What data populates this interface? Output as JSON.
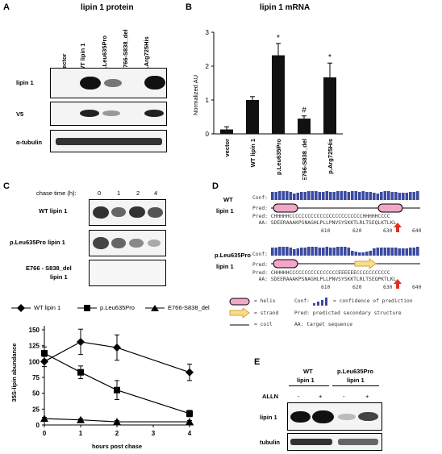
{
  "panelA": {
    "letter": "A",
    "title": "lipin 1 protein",
    "lanes": [
      "vector",
      "WT lipin 1",
      "p.Leu635Pro",
      "E766-S838_del",
      "p.Arg725His"
    ],
    "rows": [
      "lipin 1",
      "V5",
      "α-tubulin"
    ]
  },
  "panelB": {
    "letter": "B",
    "title": "lipin 1 mRNA",
    "chart_data": {
      "type": "bar",
      "categories": [
        "vector",
        "WT lipin 1",
        "p.Leu635Pro",
        "E766-S838_del",
        "p.Arg725His"
      ],
      "values": [
        0.13,
        1.0,
        2.32,
        0.45,
        1.67
      ],
      "errors": [
        0.08,
        0.1,
        0.35,
        0.08,
        0.42
      ],
      "markers": [
        "",
        "",
        "*",
        "#",
        "*"
      ],
      "ylabel": "Normalized AU",
      "ylim": [
        0,
        3
      ],
      "yticks": [
        "0",
        "1",
        "2",
        "3"
      ]
    }
  },
  "panelC": {
    "letter": "C",
    "chase_label": "chase time (h):",
    "chase_times": [
      "0",
      "1",
      "2",
      "4"
    ],
    "rows": [
      "WT lipin 1",
      "p.Leu635Pro lipin 1",
      "E766 - S838_del",
      "lipin 1"
    ],
    "chart_data": {
      "type": "line",
      "x": [
        0,
        1,
        2,
        4
      ],
      "series": [
        {
          "name": "WT lipin 1",
          "values": [
            100,
            131,
            122,
            83
          ],
          "errors": [
            8,
            20,
            20,
            13
          ]
        },
        {
          "name": "p.Leu635Pro",
          "values": [
            113,
            83,
            55,
            18
          ],
          "errors": [
            10,
            10,
            15,
            5
          ]
        },
        {
          "name": "E766-S838_del",
          "values": [
            10,
            8,
            5,
            5
          ],
          "errors": [
            2,
            2,
            2,
            2
          ]
        }
      ],
      "ylabel": "35S-lipin abundance",
      "xlabel": "hours post chase",
      "ylim": [
        0,
        150
      ],
      "xlim": [
        0,
        4
      ],
      "yticks": [
        "0",
        "25",
        "50",
        "75",
        "100",
        "125",
        "150"
      ],
      "xticks": [
        "0",
        "1",
        "2",
        "3",
        "4"
      ],
      "legend": "top"
    }
  },
  "panelD": {
    "letter": "D",
    "wt_label_1": "WT",
    "wt_label_2": "lipin 1",
    "mut_label_1": "p.Leu635Pro",
    "mut_label_2": "lipin 1",
    "conf": "Conf:",
    "pred": "Pred:",
    "wt_pred_seq": "Pred: CHHHHHCCCCCCCCCCCCCCCCCCCCCCCCHHHHHCCCC",
    "wt_aa_seq": "  AA: SDEERAAAKPSNAGHLPLLPNVSYSKKTLRLTSEQLKTLKL",
    "mut_pred_seq": "Pred: CHHHHHCCCCCCCCCCCCCCCCEEEEEECCCCCCCCCCC",
    "mut_aa_seq": "  AA: SDEERAAAKPSNAGHLPLLPNVSYSKKTLRLTSEQPKTLKL",
    "ticks": [
      "610",
      "620",
      "630",
      "640"
    ],
    "legend_helix": "= helix",
    "legend_strand": "= strand",
    "legend_coil": "= coil",
    "legend_conf": "Conf:",
    "legend_conf_desc": "= confidence of prediction",
    "legend_pred_desc": "Pred: predicted secondary structure",
    "legend_aa_desc": "AA: target sequence"
  },
  "panelE": {
    "letter": "E",
    "group1_a": "WT",
    "group1_b": "lipin 1",
    "group2_a": "p.Leu635Pro",
    "group2_b": "lipin 1",
    "alln": "ALLN",
    "signs": [
      "-",
      "+",
      "-",
      "+"
    ],
    "rows": [
      "lipin 1",
      "tubulin"
    ]
  }
}
